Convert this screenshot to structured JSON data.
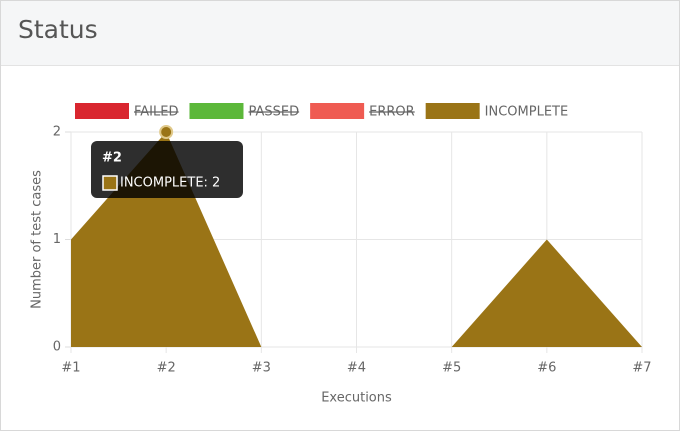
{
  "panel": {
    "title": "Status"
  },
  "chart_data": {
    "type": "area",
    "categories": [
      "#1",
      "#2",
      "#3",
      "#4",
      "#5",
      "#6",
      "#7"
    ],
    "series": [
      {
        "name": "FAILED",
        "color": "#d9262f",
        "hidden": true
      },
      {
        "name": "PASSED",
        "color": "#5cb83a",
        "hidden": true
      },
      {
        "name": "ERROR",
        "color": "#ef5b52",
        "hidden": true
      },
      {
        "name": "INCOMPLETE",
        "color": "#9a7416",
        "values": [
          1,
          2,
          0,
          0,
          0,
          1,
          0
        ]
      }
    ],
    "ylim": [
      0,
      2
    ],
    "yticks": [
      0,
      1,
      2
    ],
    "grid": true,
    "y_label": "Number of test cases",
    "x_label": "Executions",
    "tooltip": {
      "title": "#2",
      "label": "INCOMPLETE: 2",
      "series": 3,
      "index": 1
    }
  }
}
